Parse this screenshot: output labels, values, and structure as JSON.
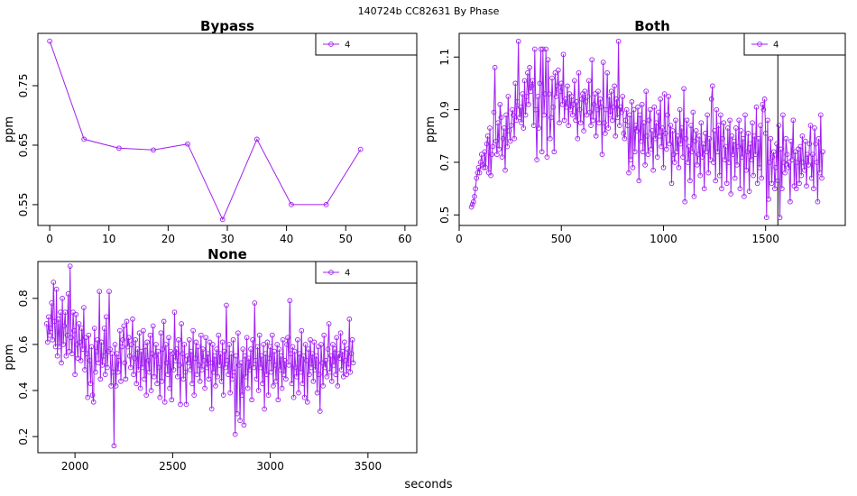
{
  "suptitle": "140724b    CC82631   By Phase",
  "xlabel": "seconds",
  "series_color": "#a020f0",
  "chart_data": [
    {
      "type": "line",
      "title": "Bypass",
      "ylabel": "ppm",
      "xlim": [
        -2,
        62
      ],
      "ylim": [
        0.515,
        0.838
      ],
      "xticks": [
        0,
        10,
        20,
        30,
        40,
        50,
        60
      ],
      "yticks": [
        0.55,
        0.65,
        0.75
      ],
      "legend": "top-right",
      "series": [
        {
          "name": "4",
          "x": [
            0,
            5.8,
            11.7,
            17.5,
            23.3,
            29.2,
            35,
            40.8,
            46.7,
            52.5
          ],
          "y": [
            0.825,
            0.66,
            0.645,
            0.642,
            0.652,
            0.525,
            0.66,
            0.55,
            0.55,
            0.643
          ]
        }
      ]
    },
    {
      "type": "line",
      "title": "Both",
      "ylabel": "ppm",
      "xlim": [
        0,
        1890
      ],
      "ylim": [
        0.46,
        1.19
      ],
      "xticks": [
        0,
        500,
        1000,
        1500
      ],
      "yticks": [
        0.5,
        0.7,
        0.9,
        1.1
      ],
      "legend": "top-right",
      "vline": 1560,
      "series": [
        {
          "name": "4",
          "x_start": 60,
          "x_step": 5,
          "y": [
            0.53,
            0.54,
            0.55,
            0.57,
            0.6,
            0.64,
            0.66,
            0.68,
            0.66,
            0.7,
            0.73,
            0.69,
            0.68,
            0.74,
            0.68,
            0.77,
            0.8,
            0.66,
            0.83,
            0.65,
            0.73,
            0.76,
            0.89,
            1.06,
            0.78,
            0.73,
            0.85,
            0.75,
            0.92,
            0.87,
            0.72,
            0.79,
            0.83,
            0.67,
            0.88,
            0.76,
            0.95,
            0.82,
            0.78,
            0.84,
            0.9,
            0.88,
            0.79,
            1.0,
            0.86,
            0.93,
            1.16,
            0.87,
            0.91,
            0.85,
            0.96,
            0.83,
            1.01,
            0.88,
            0.95,
            1.04,
            0.92,
            1.06,
            0.97,
            0.99,
            1.01,
            0.84,
            1.13,
            0.9,
            0.71,
            0.95,
            0.83,
            1.0,
            1.13,
            0.74,
            1.13,
            0.88,
            0.96,
            1.13,
            0.72,
            1.09,
            0.96,
            0.79,
            0.87,
            1.02,
            0.91,
            0.74,
            1.04,
            0.95,
            0.99,
            1.05,
            0.85,
            0.97,
            1.0,
            0.92,
            1.11,
            0.86,
            0.94,
            0.91,
            0.99,
            0.84,
            0.96,
            0.9,
            0.95,
            0.88,
            0.92,
            1.01,
            0.86,
            0.93,
            0.79,
            1.04,
            0.9,
            0.85,
            0.94,
            0.96,
            0.82,
            0.97,
            0.93,
            0.88,
            0.95,
            1.01,
            0.89,
            0.84,
            1.09,
            0.86,
            0.92,
            0.96,
            0.8,
            0.9,
            0.97,
            0.85,
            0.94,
            0.91,
            0.73,
            1.08,
            0.85,
            0.81,
            0.9,
            1.04,
            0.83,
            0.95,
            0.88,
            0.97,
            0.86,
            0.91,
            0.99,
            0.8,
            0.94,
            0.87,
            1.16,
            0.84,
            0.91,
            0.89,
            0.95,
            0.81,
            0.79,
            0.86,
            0.9,
            0.84,
            0.66,
            0.88,
            0.71,
            0.93,
            0.68,
            0.9,
            0.74,
            0.84,
            0.82,
            0.91,
            0.63,
            0.88,
            0.78,
            0.92,
            0.74,
            0.85,
            0.69,
            0.97,
            0.8,
            0.73,
            0.86,
            0.9,
            0.75,
            0.82,
            0.67,
            0.91,
            0.79,
            0.85,
            0.72,
            0.89,
            0.8,
            0.94,
            0.76,
            0.83,
            0.68,
            0.96,
            0.81,
            0.75,
            0.88,
            0.95,
            0.77,
            0.84,
            0.62,
            0.82,
            0.73,
            0.7,
            0.86,
            0.74,
            0.8,
            0.68,
            0.9,
            0.77,
            0.83,
            0.72,
            0.98,
            0.55,
            0.79,
            0.86,
            0.7,
            0.76,
            0.63,
            0.84,
            0.74,
            0.89,
            0.57,
            0.78,
            0.82,
            0.69,
            0.73,
            0.8,
            0.65,
            0.85,
            0.72,
            0.77,
            0.6,
            0.81,
            0.74,
            0.88,
            0.66,
            0.79,
            0.71,
            0.94,
            0.99,
            0.7,
            0.82,
            0.63,
            0.9,
            0.74,
            0.84,
            0.65,
            0.88,
            0.6,
            0.79,
            0.85,
            0.71,
            0.76,
            0.62,
            0.83,
            0.7,
            0.86,
            0.58,
            0.8,
            0.73,
            0.78,
            0.64,
            0.83,
            0.69,
            0.76,
            0.86,
            0.6,
            0.82,
            0.72,
            0.79,
            0.57,
            0.88,
            0.67,
            0.74,
            0.81,
            0.59,
            0.77,
            0.71,
            0.85,
            0.65,
            0.8,
            0.73,
            0.91,
            0.62,
            0.79,
            0.68,
            0.84,
            0.64,
            0.92,
            0.9,
            0.94,
            0.81,
            0.49,
            0.86,
            0.56,
            0.7,
            0.79,
            0.62,
            0.72,
            0.74,
            0.6,
            0.68,
            0.77,
            0.63,
            0.84,
            0.49,
            0.75,
            0.6,
            0.88,
            0.7,
            0.66,
            0.79,
            0.73,
            0.68,
            0.7,
            0.55,
            0.78,
            0.71,
            0.86,
            0.61,
            0.74,
            0.6,
            0.7,
            0.75,
            0.62,
            0.76,
            0.65,
            0.8,
            0.7,
            0.67,
            0.78,
            0.61,
            0.73,
            0.69,
            0.77,
            0.84,
            0.64,
            0.73,
            0.6,
            0.83,
            0.77,
            0.7,
            0.55,
            0.79,
            0.66,
            0.88,
            0.64,
            0.74
          ]
        }
      ]
    },
    {
      "type": "line",
      "title": "None",
      "ylabel": "ppm",
      "xlim": [
        1810,
        3750
      ],
      "ylim": [
        0.13,
        0.96
      ],
      "xticks": [
        2000,
        2500,
        3000,
        3500
      ],
      "yticks": [
        0.2,
        0.4,
        0.6,
        0.8
      ],
      "legend": "top-right",
      "series": [
        {
          "name": "4",
          "x_start": 1855,
          "x_step": 5,
          "y": [
            0.69,
            0.61,
            0.72,
            0.64,
            0.67,
            0.78,
            0.62,
            0.87,
            0.7,
            0.59,
            0.84,
            0.55,
            0.71,
            0.59,
            0.74,
            0.52,
            0.8,
            0.6,
            0.68,
            0.74,
            0.55,
            0.64,
            0.82,
            0.57,
            0.94,
            0.63,
            0.56,
            0.74,
            0.66,
            0.47,
            0.73,
            0.6,
            0.54,
            0.69,
            0.61,
            0.53,
            0.67,
            0.58,
            0.76,
            0.49,
            0.63,
            0.56,
            0.37,
            0.64,
            0.53,
            0.43,
            0.59,
            0.38,
            0.35,
            0.67,
            0.48,
            0.57,
            0.62,
            0.52,
            0.83,
            0.45,
            0.61,
            0.51,
            0.55,
            0.67,
            0.47,
            0.72,
            0.5,
            0.57,
            0.83,
            0.58,
            0.42,
            0.56,
            0.48,
            0.16,
            0.6,
            0.42,
            0.56,
            0.48,
            0.53,
            0.66,
            0.44,
            0.59,
            0.62,
            0.68,
            0.52,
            0.45,
            0.7,
            0.59,
            0.63,
            0.55,
            0.5,
            0.6,
            0.71,
            0.47,
            0.54,
            0.62,
            0.43,
            0.58,
            0.49,
            0.65,
            0.41,
            0.57,
            0.5,
            0.66,
            0.45,
            0.59,
            0.38,
            0.61,
            0.53,
            0.48,
            0.64,
            0.4,
            0.56,
            0.68,
            0.46,
            0.55,
            0.6,
            0.43,
            0.57,
            0.5,
            0.37,
            0.65,
            0.44,
            0.58,
            0.7,
            0.35,
            0.6,
            0.52,
            0.47,
            0.63,
            0.41,
            0.57,
            0.36,
            0.56,
            0.49,
            0.74,
            0.53,
            0.58,
            0.46,
            0.62,
            0.51,
            0.34,
            0.69,
            0.56,
            0.45,
            0.6,
            0.48,
            0.34,
            0.55,
            0.52,
            0.62,
            0.49,
            0.57,
            0.43,
            0.66,
            0.38,
            0.54,
            0.61,
            0.47,
            0.59,
            0.51,
            0.44,
            0.64,
            0.49,
            0.58,
            0.53,
            0.41,
            0.63,
            0.5,
            0.56,
            0.45,
            0.61,
            0.52,
            0.32,
            0.6,
            0.48,
            0.55,
            0.42,
            0.58,
            0.46,
            0.64,
            0.51,
            0.56,
            0.44,
            0.61,
            0.38,
            0.57,
            0.5,
            0.77,
            0.53,
            0.47,
            0.6,
            0.39,
            0.56,
            0.45,
            0.62,
            0.48,
            0.21,
            0.55,
            0.3,
            0.65,
            0.51,
            0.27,
            0.52,
            0.38,
            0.58,
            0.25,
            0.55,
            0.46,
            0.63,
            0.41,
            0.54,
            0.49,
            0.58,
            0.36,
            0.62,
            0.5,
            0.78,
            0.53,
            0.45,
            0.59,
            0.4,
            0.64,
            0.5,
            0.55,
            0.43,
            0.6,
            0.32,
            0.56,
            0.47,
            0.61,
            0.38,
            0.54,
            0.59,
            0.48,
            0.64,
            0.42,
            0.57,
            0.51,
            0.44,
            0.6,
            0.36,
            0.58,
            0.49,
            0.55,
            0.41,
            0.62,
            0.47,
            0.53,
            0.45,
            0.6,
            0.63,
            0.51,
            0.79,
            0.56,
            0.43,
            0.59,
            0.37,
            0.57,
            0.5,
            0.46,
            0.62,
            0.39,
            0.56,
            0.48,
            0.66,
            0.43,
            0.55,
            0.37,
            0.6,
            0.53,
            0.35,
            0.58,
            0.47,
            0.62,
            0.5,
            0.56,
            0.44,
            0.61,
            0.49,
            0.55,
            0.39,
            0.59,
            0.47,
            0.31,
            0.6,
            0.52,
            0.42,
            0.64,
            0.5,
            0.53,
            0.46,
            0.58,
            0.69,
            0.48,
            0.55,
            0.44,
            0.6,
            0.51,
            0.58,
            0.47,
            0.63,
            0.42,
            0.56,
            0.54,
            0.65,
            0.49,
            0.57,
            0.46,
            0.61,
            0.53,
            0.47,
            0.58,
            0.5,
            0.71,
            0.48,
            0.56,
            0.62,
            0.52
          ]
        }
      ]
    }
  ]
}
